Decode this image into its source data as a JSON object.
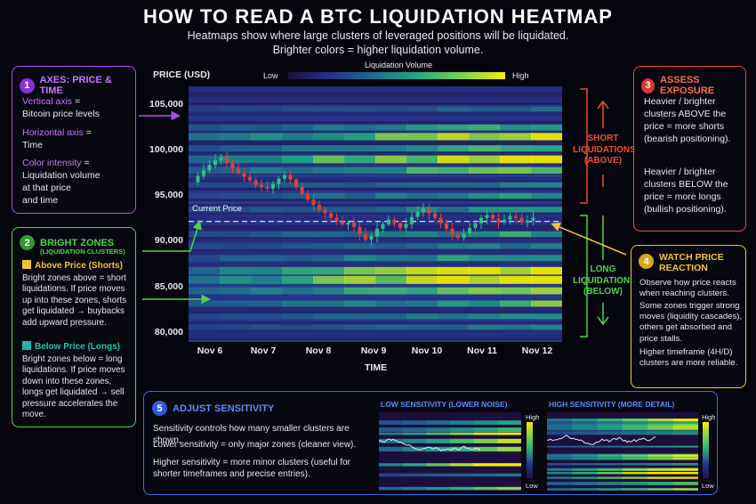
{
  "title": "HOW TO READ A BTC LIQUIDATION HEATMAP",
  "subtitle_line1": "Heatmaps show where large clusters of leveraged positions will be liquidated.",
  "subtitle_line2": "Brighter colors = higher liquidation volume.",
  "colors": {
    "purple": "#b44cf0",
    "green": "#4ed447",
    "red": "#f04a3a",
    "yellow": "#f4c430",
    "blue": "#3a6cf0",
    "teal": "#1fb6a8",
    "heat_low": "#1c0f3e",
    "heat_high": "#f4f000"
  },
  "legend": {
    "title": "Liquidation Volume",
    "low": "Low",
    "high": "High"
  },
  "card1": {
    "number": "1",
    "title": "AXES: PRICE & TIME",
    "v_key": "Vertical axis",
    "v_rest_a": " =",
    "v_rest_b": "Bitcoin price levels",
    "h_key": "Horizontal axis",
    "h_rest_a": " =",
    "h_rest_b": "Time",
    "c_key": "Color intensity",
    "c_rest_a": " =",
    "c_rest_b": "Liquidation volume",
    "c_rest_c": "at that price",
    "c_rest_d": "and time"
  },
  "card2": {
    "number": "2",
    "title": "BRIGHT ZONES",
    "subtitle": "(LIQUIDATION CLUSTERS)",
    "above_title": "Above Price (Shorts)",
    "above_text": "Bright zones above = short liquidations. If price moves up into these zones, shorts get liquidated → buybacks add upward pressure.",
    "below_title": "Below Price (Longs)",
    "below_text": "Bright zones below = long liquidations. If price moves down into these zones, longs get liquidated → sell pressure accelerates the move."
  },
  "card3": {
    "number": "3",
    "title": "ASSESS EXPOSURE",
    "p1": "Heavier / brighter clusters ABOVE the price = more shorts (bearish positioning).",
    "p2": "Heavier / brighter clusters BELOW the price = more longs (bullish positioning)."
  },
  "card4": {
    "number": "4",
    "title_line1": "WATCH PRICE",
    "title_line2": "REACTION",
    "p1": "Observe how price reacts when reaching clusters.",
    "p2": "Some zones trigger strong moves (liquidity cascades), others get absorbed and price stalls.",
    "p3": "Higher timeframe (4H/D) clusters are more reliable."
  },
  "card5": {
    "number": "5",
    "title": "ADJUST SENSITIVITY",
    "p1": "Sensitivity controls how many smaller clusters are shown.",
    "p2": "Lower sensitivity = only major zones (cleaner view).",
    "p3": "Higher sensitivity = more minor clusters (useful for shorter timeframes and precise entries).",
    "low_title": "LOW SENSITIVITY (LOWER NOISE)",
    "high_title": "HIGH SENSITIVITY (MORE DETAIL)",
    "scale_high": "High",
    "scale_low": "Low"
  },
  "short_label": [
    "SHORT",
    "LIQUIDATIONS",
    "(ABOVE)"
  ],
  "long_label": [
    "LONG",
    "LIQUIDATIONS",
    "(BELOW)"
  ],
  "current_price_label": "Current Price",
  "chart_data": {
    "type": "heatmap",
    "ylabel": "PRICE (USD)",
    "xlabel": "TIME",
    "yticks": [
      "105,000",
      "100,000",
      "95,000",
      "90,000",
      "85,000",
      "80,000"
    ],
    "ytick_values": [
      105000,
      100000,
      95000,
      90000,
      85000,
      80000
    ],
    "xticks": [
      "Nov 6",
      "Nov 7",
      "Nov 8",
      "Nov 9",
      "Nov 10",
      "Nov 11",
      "Nov 12"
    ],
    "ylim": [
      79000,
      107000
    ],
    "current_price": 92200,
    "bands": [
      {
        "price": 104500,
        "intensity": 0.3
      },
      {
        "price": 102500,
        "intensity": 0.55
      },
      {
        "price": 101500,
        "intensity": 0.85
      },
      {
        "price": 100200,
        "intensity": 0.6
      },
      {
        "price": 99000,
        "intensity": 0.95
      },
      {
        "price": 97800,
        "intensity": 0.7
      },
      {
        "price": 96200,
        "intensity": 0.4
      },
      {
        "price": 95000,
        "intensity": 0.5
      },
      {
        "price": 93500,
        "intensity": 0.45
      },
      {
        "price": 90800,
        "intensity": 0.5
      },
      {
        "price": 89500,
        "intensity": 0.4
      },
      {
        "price": 88200,
        "intensity": 0.55
      },
      {
        "price": 86800,
        "intensity": 0.9
      },
      {
        "price": 85800,
        "intensity": 1.0
      },
      {
        "price": 84600,
        "intensity": 0.75
      },
      {
        "price": 83200,
        "intensity": 0.6
      },
      {
        "price": 81800,
        "intensity": 0.45
      },
      {
        "price": 80600,
        "intensity": 0.35
      }
    ],
    "price_series": [
      96500,
      97200,
      97800,
      98400,
      98900,
      99200,
      98600,
      98000,
      97500,
      97100,
      96700,
      96200,
      96000,
      95800,
      96300,
      96900,
      97300,
      96800,
      96000,
      95200,
      94600,
      94000,
      93500,
      93100,
      92600,
      92200,
      91900,
      92100,
      91600,
      90800,
      90200,
      90600,
      91400,
      91900,
      92400,
      92000,
      91500,
      91900,
      92700,
      93200,
      93600,
      93100,
      92600,
      92000,
      91400,
      90800,
      90400,
      90900,
      91500,
      92000,
      92600,
      92900,
      92500,
      92100,
      92400,
      92800,
      92600,
      92100,
      92300,
      92600
    ]
  }
}
